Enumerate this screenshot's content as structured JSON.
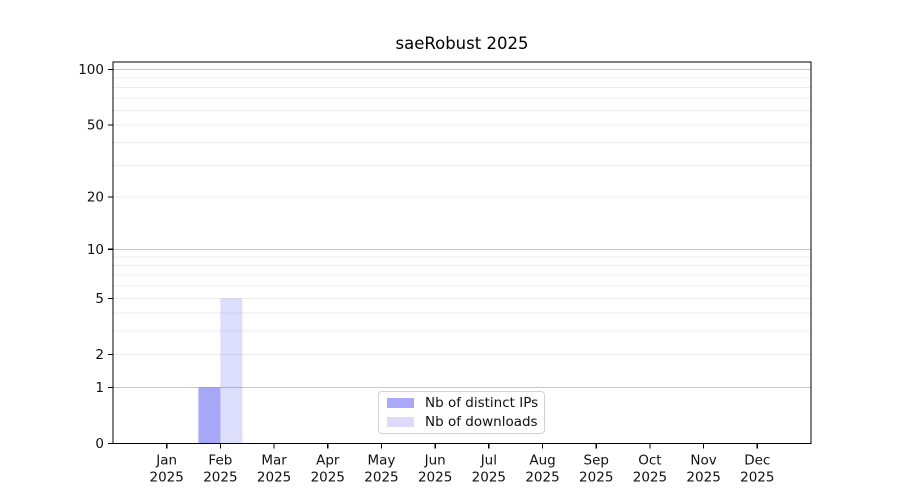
{
  "chart_data": {
    "type": "bar",
    "title": "saeRobust 2025",
    "x_months": [
      "Jan",
      "Feb",
      "Mar",
      "Apr",
      "May",
      "Jun",
      "Jul",
      "Aug",
      "Sep",
      "Oct",
      "Nov",
      "Dec"
    ],
    "x_year": "2025",
    "series": [
      {
        "name": "Nb of distinct IPs",
        "fill": "rgba(87, 87, 240, 0.52)",
        "legend_color": "#a9a9f7",
        "values": [
          0,
          1,
          0,
          0,
          0,
          0,
          0,
          0,
          0,
          0,
          0,
          0
        ]
      },
      {
        "name": "Nb of downloads",
        "fill": "rgba(87, 87, 240, 0.20)",
        "legend_color": "#dcdcfa",
        "values": [
          0,
          5,
          0,
          0,
          0,
          0,
          0,
          0,
          0,
          0,
          0,
          0
        ]
      }
    ],
    "y_scale": "log1p",
    "y_tick_values": [
      0,
      1,
      2,
      5,
      10,
      20,
      50,
      100
    ],
    "y_major_grid": [
      1,
      10,
      100
    ],
    "y_minor_grid": [
      2,
      3,
      4,
      5,
      6,
      7,
      8,
      9,
      20,
      30,
      40,
      50,
      60,
      70,
      80,
      90
    ],
    "ylim": [
      0,
      110
    ],
    "grid": "horizontal",
    "legend_position": "lower center"
  },
  "style": {
    "spine_color": "#000000",
    "tick_text_color": "#111111",
    "major_grid_color": "#c8c8c8",
    "minor_grid_color": "#ececec",
    "legend_border_color": "#d2d2d2",
    "background": "#ffffff"
  }
}
